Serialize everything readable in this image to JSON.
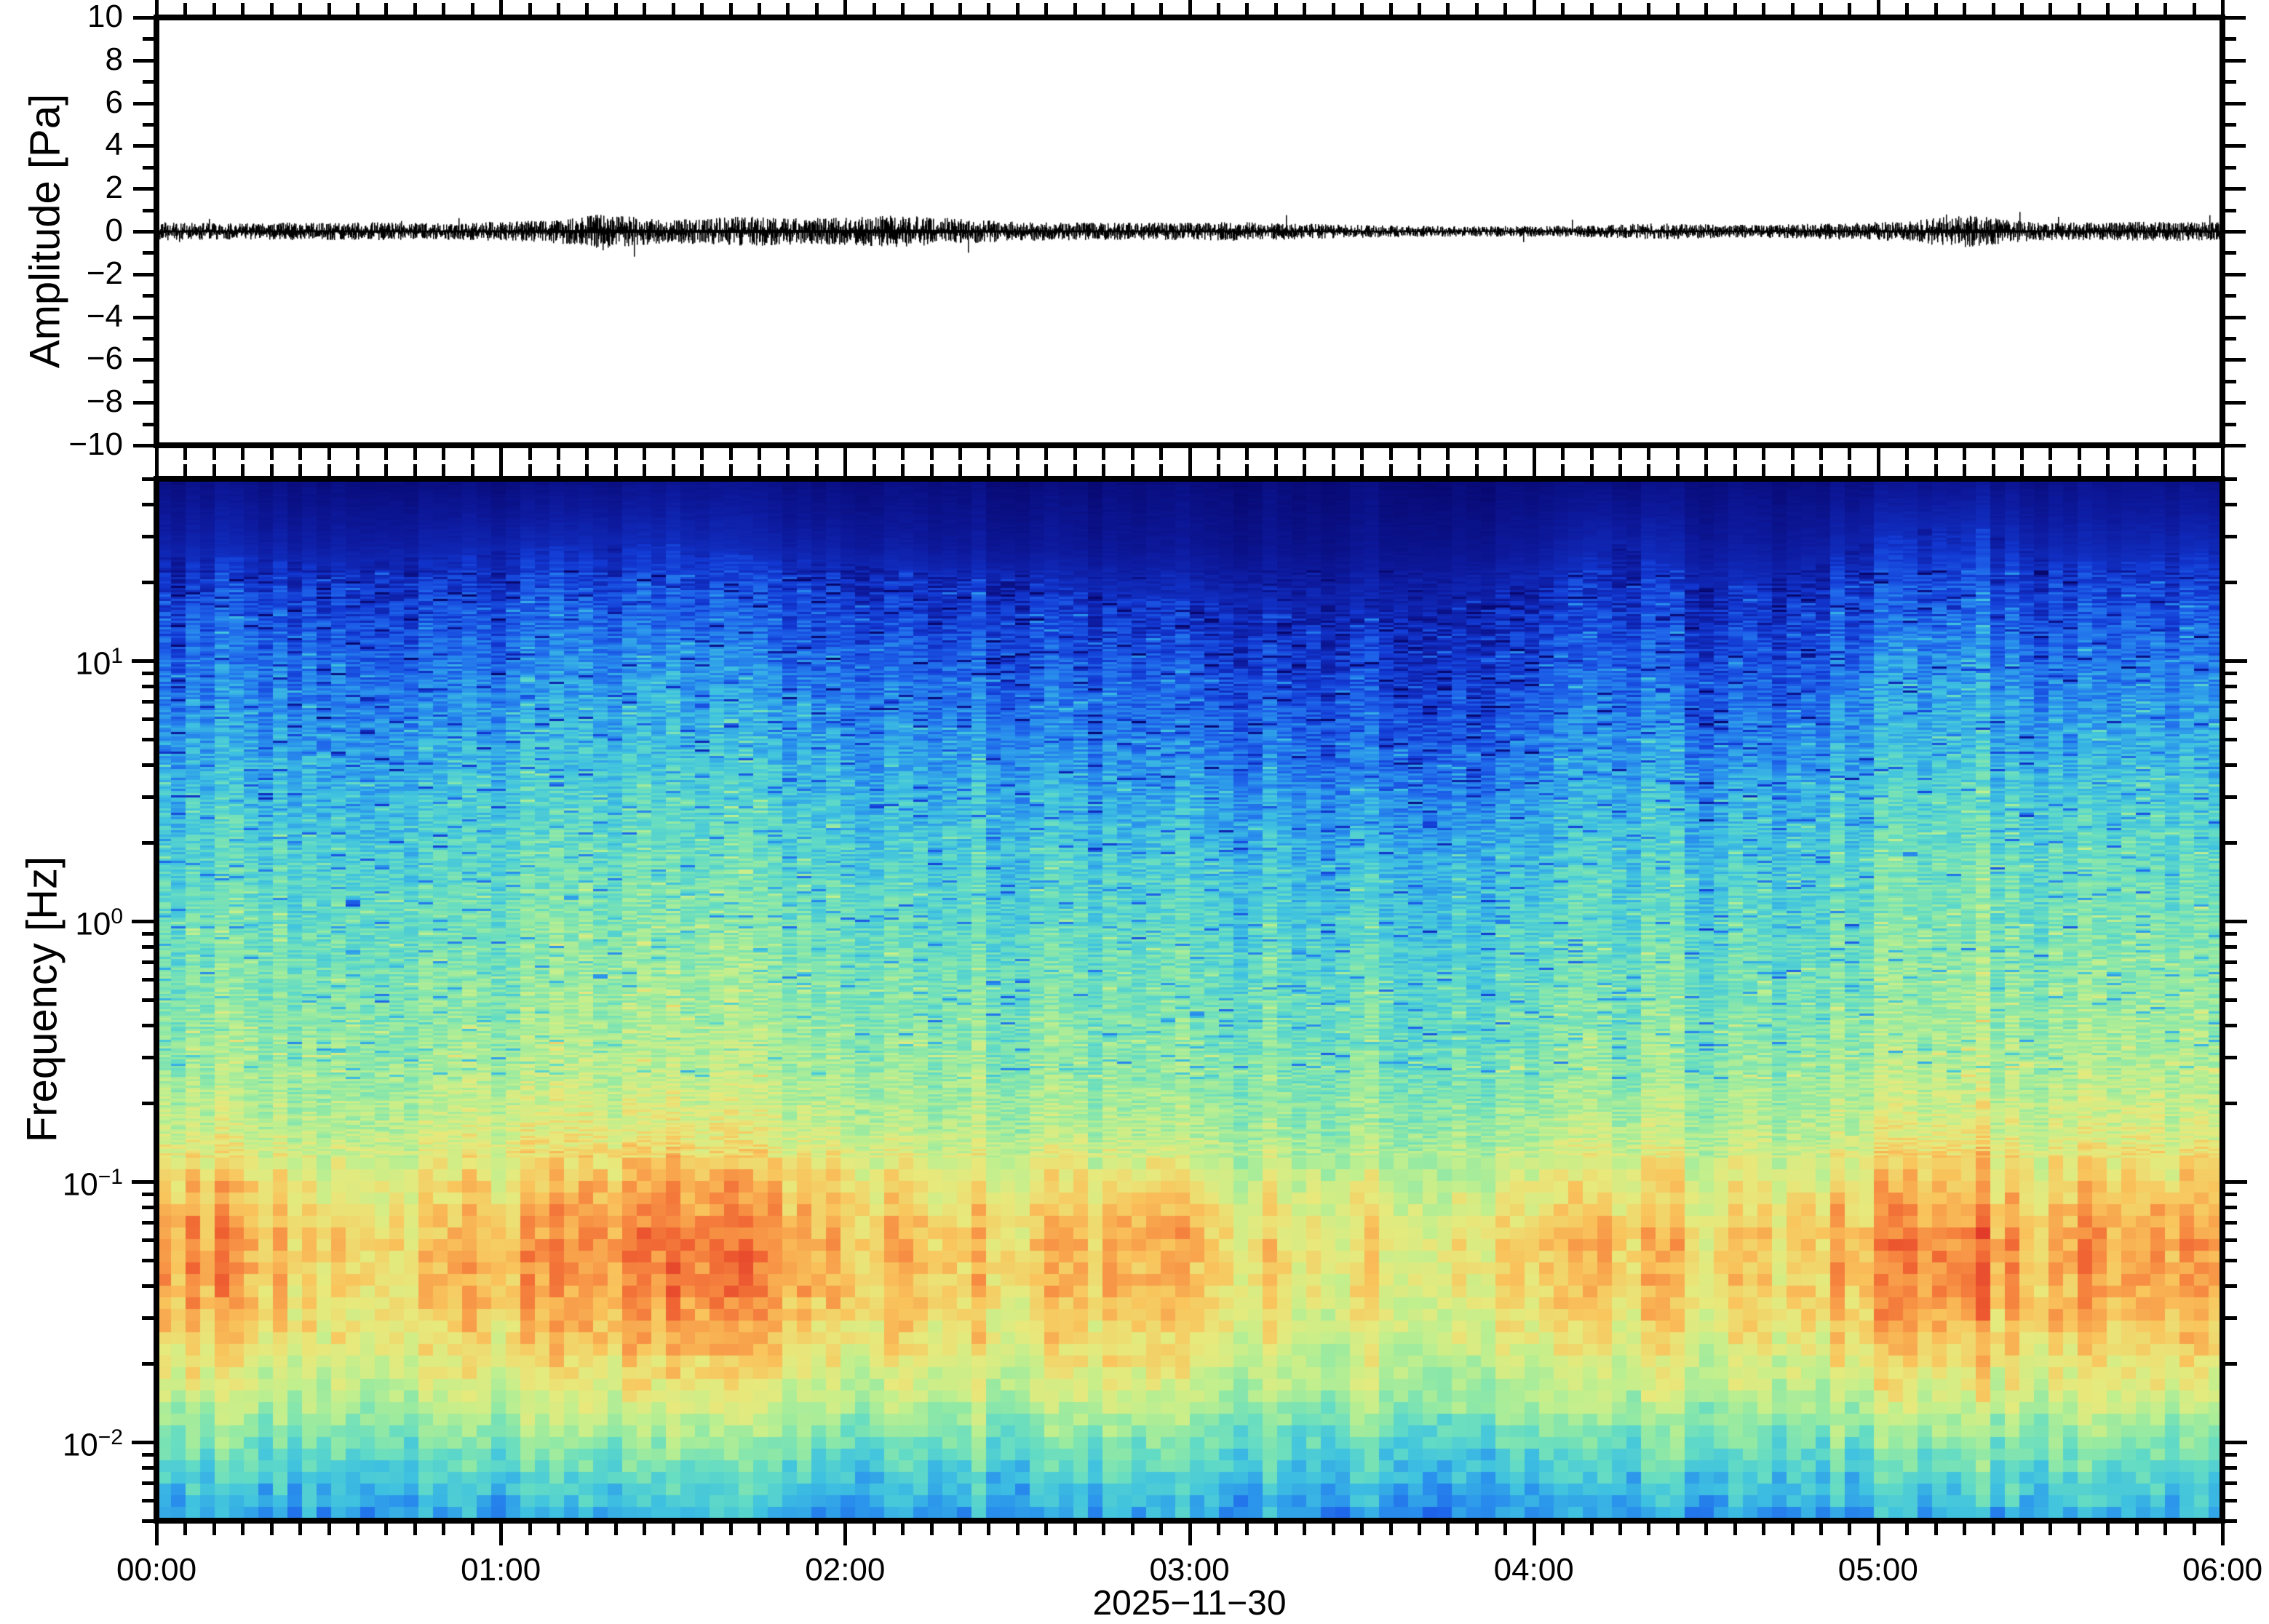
{
  "date_label": "2025−11−30",
  "waveform_panel": {
    "ylabel": "Amplitude [Pa]",
    "ylim": [
      -10,
      10
    ],
    "ytick_values": [
      -10,
      -8,
      -6,
      -4,
      -2,
      0,
      2,
      4,
      6,
      8,
      10
    ],
    "ytick_labels": [
      "−10",
      "−8",
      "−6",
      "−4",
      "−2",
      "0",
      "2",
      "4",
      "6",
      "8",
      "10"
    ],
    "yminor_values": [
      -9,
      -7,
      -5,
      -3,
      -1,
      1,
      3,
      5,
      7,
      9
    ],
    "trace_color": "#000000"
  },
  "spectrogram_panel": {
    "ylabel": "Frequency [Hz]",
    "freq_ticks": [
      {
        "base": "10",
        "exp": "1",
        "value": 10
      },
      {
        "base": "10",
        "exp": "0",
        "value": 1
      },
      {
        "base": "10",
        "exp": "−1",
        "value": 0.1
      },
      {
        "base": "10",
        "exp": "−2",
        "value": 0.01
      }
    ]
  },
  "time_axis": {
    "hour_labels": [
      "00:00",
      "01:00",
      "02:00",
      "03:00",
      "04:00",
      "05:00",
      "06:00"
    ],
    "hour_values": [
      0,
      1,
      2,
      3,
      4,
      5,
      6
    ],
    "minor_step_minutes": 5
  },
  "chart_data": [
    {
      "type": "line",
      "title": "",
      "ylabel": "Amplitude [Pa]",
      "ylim": [
        -10,
        10
      ],
      "xlim_hours": [
        0,
        6
      ],
      "xtick_labels": [
        "00:00",
        "01:00",
        "02:00",
        "03:00",
        "04:00",
        "05:00",
        "06:00"
      ],
      "description": "broadband pressure trace centered on 0 Pa; peak-amplitude envelope sampled every 5 minutes",
      "envelope": {
        "dt_minutes": 5,
        "peak_pa": [
          0.27,
          0.25,
          0.24,
          0.25,
          0.26,
          0.25,
          0.26,
          0.27,
          0.25,
          0.24,
          0.26,
          0.28,
          0.3,
          0.33,
          0.4,
          0.5,
          0.44,
          0.38,
          0.36,
          0.4,
          0.45,
          0.42,
          0.38,
          0.4,
          0.42,
          0.46,
          0.44,
          0.4,
          0.34,
          0.3,
          0.28,
          0.27,
          0.26,
          0.25,
          0.26,
          0.25,
          0.26,
          0.28,
          0.26,
          0.24,
          0.22,
          0.2,
          0.18,
          0.17,
          0.16,
          0.15,
          0.15,
          0.16,
          0.16,
          0.17,
          0.19,
          0.22,
          0.24,
          0.22,
          0.2,
          0.19,
          0.2,
          0.22,
          0.24,
          0.26,
          0.28,
          0.34,
          0.52,
          0.46,
          0.34,
          0.28,
          0.26,
          0.26,
          0.27,
          0.29,
          0.28,
          0.27
        ]
      }
    },
    {
      "type": "heatmap",
      "ylabel": "Frequency [Hz]",
      "yscale": "log",
      "ylim": [
        0.005,
        50
      ],
      "xlim_hours": [
        0,
        6
      ],
      "xtick_labels": [
        "00:00",
        "01:00",
        "02:00",
        "03:00",
        "04:00",
        "05:00",
        "06:00"
      ],
      "description": "normalized spectral power 0..1 on grid of log10(frequency) rows x 15-minute columns",
      "grid": {
        "t_cols_hours": [
          0,
          0.25,
          0.5,
          0.75,
          1,
          1.25,
          1.5,
          1.75,
          2,
          2.25,
          2.5,
          2.75,
          3,
          3.25,
          3.5,
          3.75,
          4,
          4.25,
          4.5,
          4.75,
          5,
          5.25,
          5.5,
          5.75,
          6
        ],
        "log10_f_rows": [
          1.7,
          1.45,
          1.2,
          0.95,
          0.7,
          0.45,
          0.2,
          -0.05,
          -0.3,
          -0.55,
          -0.8,
          -1.0,
          -1.2,
          -1.4,
          -1.6,
          -1.8,
          -2.0,
          -2.3
        ],
        "values": [
          [
            0.04,
            0.04,
            0.03,
            0.03,
            0.03,
            0.04,
            0.05,
            0.04,
            0.03,
            0.03,
            0.02,
            0.02,
            0.02,
            0.02,
            0.02,
            0.02,
            0.03,
            0.04,
            0.03,
            0.03,
            0.05,
            0.06,
            0.04,
            0.04,
            0.05
          ],
          [
            0.1,
            0.1,
            0.09,
            0.1,
            0.11,
            0.12,
            0.12,
            0.1,
            0.09,
            0.08,
            0.07,
            0.06,
            0.06,
            0.05,
            0.05,
            0.06,
            0.08,
            0.12,
            0.08,
            0.08,
            0.13,
            0.15,
            0.1,
            0.1,
            0.12
          ],
          [
            0.2,
            0.2,
            0.19,
            0.2,
            0.22,
            0.24,
            0.23,
            0.21,
            0.19,
            0.17,
            0.16,
            0.14,
            0.13,
            0.12,
            0.11,
            0.12,
            0.15,
            0.2,
            0.14,
            0.15,
            0.24,
            0.26,
            0.18,
            0.18,
            0.22
          ],
          [
            0.28,
            0.28,
            0.27,
            0.28,
            0.3,
            0.33,
            0.32,
            0.3,
            0.27,
            0.25,
            0.24,
            0.22,
            0.2,
            0.18,
            0.17,
            0.18,
            0.22,
            0.28,
            0.21,
            0.22,
            0.32,
            0.34,
            0.26,
            0.26,
            0.3
          ],
          [
            0.35,
            0.34,
            0.33,
            0.35,
            0.37,
            0.4,
            0.39,
            0.37,
            0.34,
            0.32,
            0.31,
            0.29,
            0.27,
            0.25,
            0.24,
            0.25,
            0.29,
            0.35,
            0.28,
            0.3,
            0.39,
            0.41,
            0.33,
            0.34,
            0.37
          ],
          [
            0.42,
            0.41,
            0.4,
            0.42,
            0.44,
            0.46,
            0.45,
            0.44,
            0.41,
            0.39,
            0.38,
            0.36,
            0.35,
            0.33,
            0.32,
            0.33,
            0.36,
            0.42,
            0.36,
            0.38,
            0.45,
            0.47,
            0.41,
            0.41,
            0.44
          ],
          [
            0.47,
            0.46,
            0.46,
            0.47,
            0.49,
            0.51,
            0.5,
            0.49,
            0.47,
            0.45,
            0.44,
            0.43,
            0.42,
            0.4,
            0.39,
            0.4,
            0.43,
            0.47,
            0.42,
            0.44,
            0.5,
            0.52,
            0.46,
            0.47,
            0.49
          ],
          [
            0.51,
            0.5,
            0.5,
            0.51,
            0.53,
            0.55,
            0.54,
            0.53,
            0.51,
            0.49,
            0.48,
            0.47,
            0.46,
            0.45,
            0.44,
            0.45,
            0.47,
            0.51,
            0.47,
            0.48,
            0.54,
            0.55,
            0.5,
            0.51,
            0.53
          ],
          [
            0.55,
            0.54,
            0.54,
            0.55,
            0.57,
            0.58,
            0.58,
            0.57,
            0.55,
            0.53,
            0.52,
            0.51,
            0.5,
            0.49,
            0.48,
            0.49,
            0.51,
            0.55,
            0.51,
            0.52,
            0.57,
            0.59,
            0.54,
            0.55,
            0.57
          ],
          [
            0.6,
            0.58,
            0.58,
            0.6,
            0.62,
            0.63,
            0.62,
            0.61,
            0.59,
            0.57,
            0.56,
            0.55,
            0.54,
            0.53,
            0.52,
            0.53,
            0.55,
            0.59,
            0.55,
            0.57,
            0.62,
            0.63,
            0.58,
            0.59,
            0.61
          ],
          [
            0.68,
            0.64,
            0.63,
            0.66,
            0.69,
            0.71,
            0.7,
            0.68,
            0.66,
            0.63,
            0.62,
            0.61,
            0.6,
            0.58,
            0.57,
            0.59,
            0.62,
            0.66,
            0.61,
            0.63,
            0.69,
            0.71,
            0.65,
            0.66,
            0.68
          ],
          [
            0.84,
            0.76,
            0.72,
            0.74,
            0.78,
            0.82,
            0.83,
            0.81,
            0.78,
            0.74,
            0.73,
            0.75,
            0.73,
            0.68,
            0.66,
            0.68,
            0.74,
            0.78,
            0.7,
            0.73,
            0.8,
            0.83,
            0.75,
            0.76,
            0.79
          ],
          [
            0.9,
            0.82,
            0.78,
            0.8,
            0.84,
            0.88,
            0.89,
            0.87,
            0.84,
            0.8,
            0.78,
            0.82,
            0.8,
            0.74,
            0.72,
            0.75,
            0.81,
            0.84,
            0.76,
            0.8,
            0.87,
            0.9,
            0.82,
            0.83,
            0.85
          ],
          [
            0.88,
            0.8,
            0.77,
            0.79,
            0.83,
            0.86,
            0.87,
            0.85,
            0.82,
            0.79,
            0.77,
            0.8,
            0.78,
            0.73,
            0.71,
            0.74,
            0.79,
            0.82,
            0.75,
            0.78,
            0.85,
            0.88,
            0.8,
            0.81,
            0.83
          ],
          [
            0.78,
            0.74,
            0.72,
            0.74,
            0.77,
            0.8,
            0.8,
            0.78,
            0.76,
            0.73,
            0.72,
            0.74,
            0.72,
            0.68,
            0.67,
            0.69,
            0.73,
            0.76,
            0.7,
            0.73,
            0.78,
            0.8,
            0.74,
            0.75,
            0.77
          ],
          [
            0.68,
            0.65,
            0.64,
            0.65,
            0.68,
            0.7,
            0.7,
            0.68,
            0.66,
            0.64,
            0.63,
            0.65,
            0.63,
            0.6,
            0.59,
            0.61,
            0.64,
            0.66,
            0.62,
            0.64,
            0.68,
            0.7,
            0.65,
            0.66,
            0.67
          ],
          [
            0.52,
            0.5,
            0.5,
            0.51,
            0.53,
            0.55,
            0.54,
            0.53,
            0.51,
            0.5,
            0.49,
            0.5,
            0.49,
            0.47,
            0.46,
            0.48,
            0.5,
            0.52,
            0.48,
            0.5,
            0.53,
            0.55,
            0.51,
            0.51,
            0.52
          ],
          [
            0.33,
            0.32,
            0.32,
            0.33,
            0.34,
            0.36,
            0.35,
            0.34,
            0.33,
            0.32,
            0.31,
            0.32,
            0.31,
            0.3,
            0.29,
            0.31,
            0.32,
            0.34,
            0.31,
            0.32,
            0.34,
            0.36,
            0.33,
            0.33,
            0.34
          ]
        ]
      },
      "colormap_stops": [
        [
          0.0,
          "#07076e"
        ],
        [
          0.08,
          "#0d1a9e"
        ],
        [
          0.16,
          "#1238d2"
        ],
        [
          0.24,
          "#1e63ea"
        ],
        [
          0.32,
          "#2a93ec"
        ],
        [
          0.4,
          "#3fc2e0"
        ],
        [
          0.48,
          "#62dbc5"
        ],
        [
          0.56,
          "#92e9a4"
        ],
        [
          0.64,
          "#c2ef8d"
        ],
        [
          0.72,
          "#e7e97c"
        ],
        [
          0.8,
          "#f9c45c"
        ],
        [
          0.88,
          "#f78f43"
        ],
        [
          0.94,
          "#ef5f31"
        ],
        [
          1.0,
          "#dc2b27"
        ]
      ]
    }
  ]
}
